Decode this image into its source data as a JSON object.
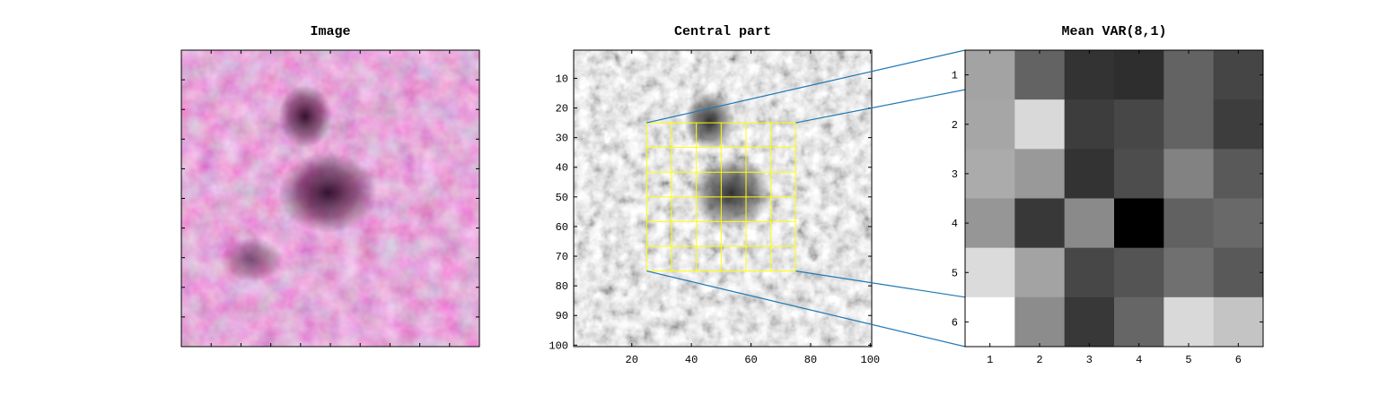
{
  "titles": {
    "image": "Image",
    "central": "Central part",
    "mean_var": "Mean VAR(8,1)"
  },
  "colors": {
    "grid_overlay": "#ffff00",
    "connector": "#1f77b4",
    "tissue_base": "#c9557f",
    "tissue_dark": "#4b1238",
    "tissue_light": "#f3d5e2"
  },
  "chart_data": [
    {
      "type": "image",
      "title": "Image",
      "description_axes": "no tick labels"
    },
    {
      "type": "image",
      "title": "Central part",
      "x_ticks": [
        "20",
        "40",
        "60",
        "80",
        "100"
      ],
      "y_ticks": [
        "10",
        "20",
        "30",
        "40",
        "50",
        "60",
        "70",
        "80",
        "90",
        "100"
      ],
      "xlim": [
        0.5,
        100.5
      ],
      "ylim": [
        0.5,
        100.5
      ],
      "grid_overlay": {
        "x_start": 25,
        "x_end": 75,
        "y_start": 25,
        "y_end": 75,
        "cells": 6
      }
    },
    {
      "type": "heatmap",
      "title": "Mean VAR(8,1)",
      "x_ticks": [
        "1",
        "2",
        "3",
        "4",
        "5",
        "6"
      ],
      "y_ticks": [
        "1",
        "2",
        "3",
        "4",
        "5",
        "6"
      ],
      "colormap": "gray",
      "values": [
        [
          0.64,
          0.39,
          0.2,
          0.18,
          0.39,
          0.27
        ],
        [
          0.65,
          0.85,
          0.24,
          0.28,
          0.39,
          0.24
        ],
        [
          0.67,
          0.6,
          0.2,
          0.3,
          0.51,
          0.35
        ],
        [
          0.59,
          0.22,
          0.54,
          0.0,
          0.38,
          0.41
        ],
        [
          0.86,
          0.64,
          0.28,
          0.33,
          0.44,
          0.35
        ],
        [
          1.0,
          0.55,
          0.22,
          0.4,
          0.85,
          0.77
        ]
      ]
    }
  ]
}
